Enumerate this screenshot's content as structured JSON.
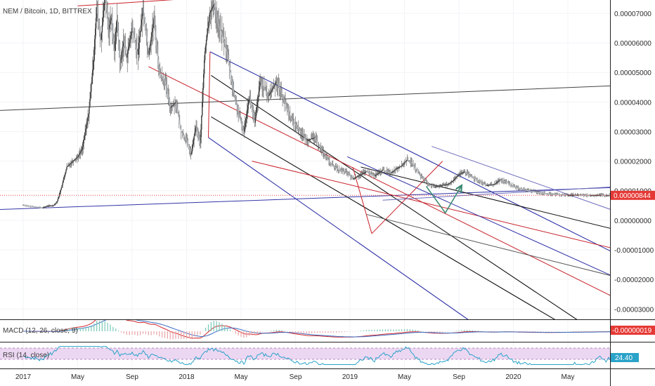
{
  "chart_data": {
    "type": "line",
    "title": "NEM / Bitcoin, 1D, BITTREX",
    "price_axis_ticks": [
      "0.00007000",
      "0.00006000",
      "0.00005000",
      "0.00004000",
      "0.00003000",
      "0.00002000",
      "0.00001000",
      "0.00000000",
      "-0.00001000",
      "-0.00002000",
      "-0.00003000"
    ],
    "price_ylim": [
      -3.35e-05,
      7.45e-05
    ],
    "current_price_label": "0.00000844",
    "current_price": 8.44e-06,
    "time_axis_labels": [
      "2017",
      "May",
      "Sep",
      "2018",
      "May",
      "Sep",
      "2019",
      "May",
      "Sep",
      "2020",
      "May"
    ],
    "price_series": {
      "name": "NEM / Bitcoin",
      "t": [
        0,
        0.1,
        0.25,
        0.35,
        0.45,
        0.55,
        0.62,
        0.7,
        0.8,
        0.88,
        1.0,
        1.08,
        1.2,
        1.28,
        1.35,
        1.42,
        1.5,
        1.57,
        1.62,
        1.67,
        1.72,
        1.78,
        1.84,
        1.9,
        2.0,
        2.1,
        2.2,
        2.3,
        2.4,
        2.5,
        2.6,
        2.7,
        2.8,
        2.9,
        3.0,
        3.08,
        3.17,
        3.25,
        3.33,
        3.42,
        3.5,
        3.58,
        3.67,
        3.75,
        3.85,
        3.95,
        4.05,
        4.15,
        4.25,
        4.35,
        4.5,
        4.65,
        4.8,
        4.93,
        5.05,
        5.2,
        5.35,
        5.5,
        5.65,
        5.8,
        5.95,
        6.05,
        6.15,
        6.3,
        6.45,
        6.6,
        6.75,
        6.85,
        6.95,
        7.05,
        7.15,
        7.25,
        7.35,
        7.45,
        7.55,
        7.65,
        7.8,
        7.9,
        8.0,
        8.1,
        8.2,
        8.35,
        8.5,
        8.65,
        8.75,
        8.87,
        9.0,
        9.15,
        9.3,
        9.45,
        9.6,
        9.75,
        9.9,
        10.0,
        10.1,
        10.2,
        10.3,
        10.4,
        10.5,
        10.6,
        10.7,
        10.75,
        10.8,
        10.85,
        10.9
      ],
      "values": [
        5.2e-06,
        4.7e-06,
        4.5e-06,
        4.2e-06,
        4.9e-06,
        5e-06,
        6.2e-06,
        1.1e-05,
        1.8e-05,
        1.95e-05,
        2.15e-05,
        2.4e-05,
        3.6e-05,
        5.2e-05,
        7.2e-05,
        6e-05,
        7.6e-05,
        6.4e-05,
        7e-05,
        5.6e-05,
        6.9e-05,
        5.2e-05,
        6.1e-05,
        5.5e-05,
        6.5e-05,
        5.6e-05,
        7.2e-05,
        5.6e-05,
        6.8e-05,
        5e-05,
        4.7e-05,
        3.8e-05,
        4e-05,
        3e-05,
        2.7e-05,
        2.2e-05,
        3.2e-05,
        2.6e-05,
        5.6e-05,
        7e-05,
        7.3e-05,
        6.6e-05,
        6.2e-05,
        5.6e-05,
        4.4e-05,
        3.6e-05,
        3e-05,
        4.2e-05,
        3.3e-05,
        4.7e-05,
        4.2e-05,
        4.7e-05,
        4e-05,
        3.4e-05,
        3.1e-05,
        2.7e-05,
        2.8e-05,
        2.3e-05,
        1.9e-05,
        1.7e-05,
        1.6e-05,
        1.4e-05,
        1.5e-05,
        1.65e-05,
        1.5e-05,
        1.7e-05,
        1.6e-05,
        1.75e-05,
        1.85e-05,
        2.05e-05,
        1.9e-05,
        1.6e-05,
        1.4e-05,
        1.2e-05,
        1.12e-05,
        1.18e-05,
        1.22e-05,
        1.35e-05,
        1.55e-05,
        1.65e-05,
        1.5e-05,
        1.35e-05,
        1.18e-05,
        1.22e-05,
        1.35e-05,
        1.3e-05,
        1.15e-05,
        1.05e-05,
        1e-05,
        9.5e-06,
        9e-06,
        8.8e-06,
        8.6e-06,
        8.5e-06,
        8.6e-06,
        8.6e-06,
        8.5e-06,
        8.4e-06,
        8.5e-06,
        8.6e-06,
        8.4e-06,
        8.5e-06,
        8.4e-06,
        8.4e-06,
        8.4e-06
      ]
    },
    "macd": {
      "label": "MACD (12, 26, close, 9)",
      "value_label": "-0.00000019",
      "color": "#d3272b"
    },
    "rsi": {
      "label": "RSI (14, close)",
      "value_label": "24.40",
      "color": "#2aa3c9",
      "band_color": "#ecd7f2"
    },
    "colors": {
      "up": "#3a3a3a",
      "down": "#d8dde2",
      "pitchfork_blue": "#2b2ea6",
      "pitchfork_red": "#c8222a",
      "pitchfork_black": "#111111",
      "current_price_line": "#e04040",
      "arrow": "#3c8a72",
      "grid": "#f1f3f5"
    }
  }
}
